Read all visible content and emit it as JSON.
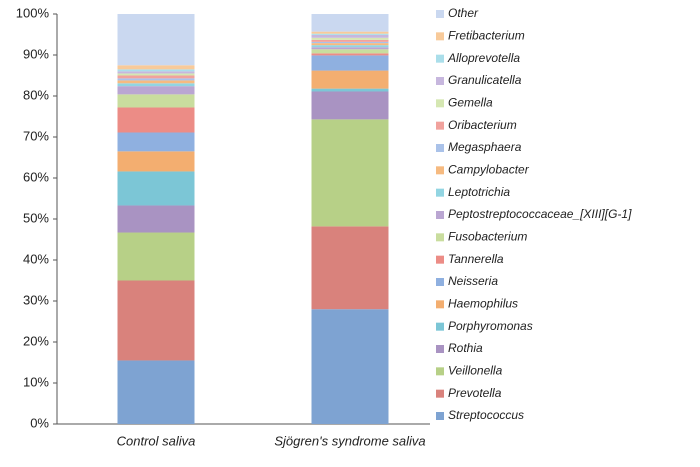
{
  "chart_data": {
    "type": "stacked_bar",
    "categories": [
      "Control saliva",
      "Sjögren's syndrome saliva"
    ],
    "ylim": [
      0,
      100
    ],
    "yticks": [
      {
        "value": 0,
        "label": "0%"
      },
      {
        "value": 10,
        "label": "10%"
      },
      {
        "value": 20,
        "label": "20%"
      },
      {
        "value": 30,
        "label": "30%"
      },
      {
        "value": 40,
        "label": "40%"
      },
      {
        "value": 50,
        "label": "50%"
      },
      {
        "value": 60,
        "label": "60%"
      },
      {
        "value": 70,
        "label": "70%"
      },
      {
        "value": 80,
        "label": "80%"
      },
      {
        "value": 90,
        "label": "90%"
      },
      {
        "value": 100,
        "label": "100%"
      }
    ],
    "series": [
      {
        "name": "Streptococcus",
        "color": "#7ea3d2",
        "values": [
          15.5,
          28
        ]
      },
      {
        "name": "Prevotella",
        "color": "#d9827c",
        "values": [
          19.5,
          20.2
        ]
      },
      {
        "name": "Veillonella",
        "color": "#b7d087",
        "values": [
          11.7,
          26.1
        ]
      },
      {
        "name": "Rothia",
        "color": "#a993c2",
        "values": [
          6.6,
          6.8
        ]
      },
      {
        "name": "Porphyromonas",
        "color": "#7cc6d6",
        "values": [
          8.3,
          0.7
        ]
      },
      {
        "name": "Haemophilus",
        "color": "#f3ae70",
        "values": [
          4.9,
          4.4
        ]
      },
      {
        "name": "Neisseria",
        "color": "#8fb0e0",
        "values": [
          4.6,
          3.7
        ]
      },
      {
        "name": "Tannerella",
        "color": "#ec8c86",
        "values": [
          6.1,
          0.5
        ]
      },
      {
        "name": "Fusobacterium",
        "color": "#c9dd9e",
        "values": [
          3.2,
          1
        ]
      },
      {
        "name": "Peptostreptococcaceae_[XIII][G-1]",
        "color": "#baa6d2",
        "values": [
          2,
          0.5
        ]
      },
      {
        "name": "Leptotrichia",
        "color": "#92d5e2",
        "values": [
          0.7,
          0.5
        ]
      },
      {
        "name": "Campylobacter",
        "color": "#f6ba80",
        "values": [
          0.7,
          0.5
        ]
      },
      {
        "name": "Megasphaera",
        "color": "#aac2e9",
        "values": [
          0.5,
          0.3
        ]
      },
      {
        "name": "Oribacterium",
        "color": "#f1a29d",
        "values": [
          0.7,
          0.5
        ]
      },
      {
        "name": "Gemella",
        "color": "#d5e7b2",
        "values": [
          0.5,
          0.5
        ]
      },
      {
        "name": "Granulicatella",
        "color": "#c7b7de",
        "values": [
          0.5,
          0.7
        ]
      },
      {
        "name": "Alloprevotella",
        "color": "#aadeea",
        "values": [
          0.5,
          0.3
        ]
      },
      {
        "name": "Fretibacterium",
        "color": "#f8ca9a",
        "values": [
          1,
          0.5
        ]
      },
      {
        "name": "Other",
        "color": "#cad8f0",
        "values": [
          12.5,
          4.3
        ]
      }
    ]
  }
}
